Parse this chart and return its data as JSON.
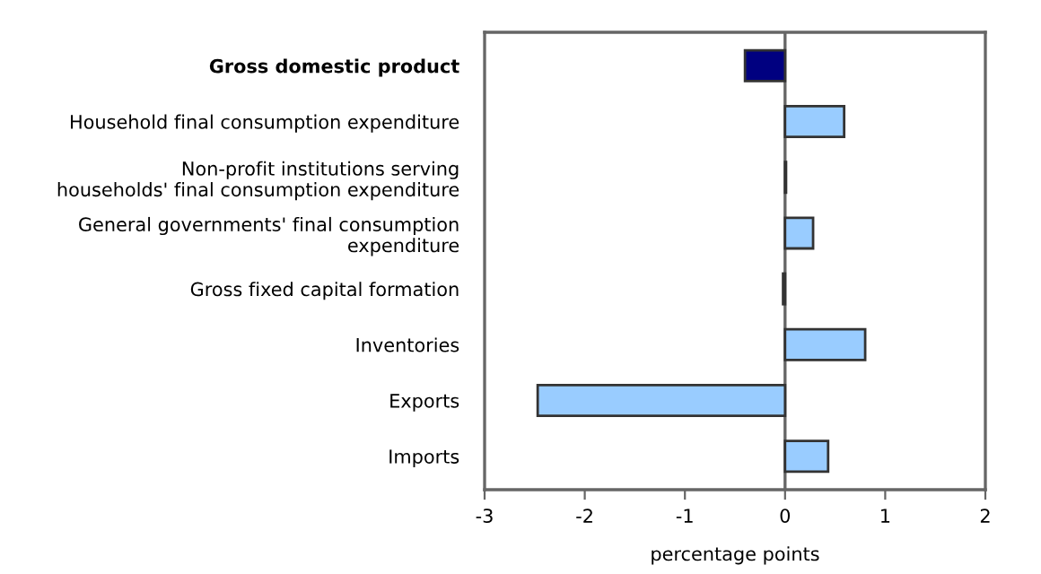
{
  "chart_data": {
    "type": "bar",
    "orientation": "horizontal",
    "categories": [
      "Gross domestic product",
      "Household final consumption expenditure",
      "Non-profit institutions serving\nhouseholds' final consumption expenditure",
      "General governments' final consumption\nexpenditure",
      "Gross fixed capital formation",
      "Inventories",
      "Exports",
      "Imports"
    ],
    "values": [
      -0.4,
      0.59,
      0.01,
      0.28,
      -0.02,
      0.8,
      -2.47,
      0.43
    ],
    "colors": [
      "#000080",
      "#99ccff",
      "#99ccff",
      "#99ccff",
      "#99ccff",
      "#99ccff",
      "#99ccff",
      "#99ccff"
    ],
    "xlim": [
      -3,
      2
    ],
    "xticks": [
      -3,
      -2,
      -1,
      0,
      1,
      2
    ],
    "xlabel": "percentage points",
    "grid": false,
    "ref_lines": [
      {
        "axis": "x",
        "value": 0,
        "color": "#666666"
      }
    ],
    "legend": false
  }
}
